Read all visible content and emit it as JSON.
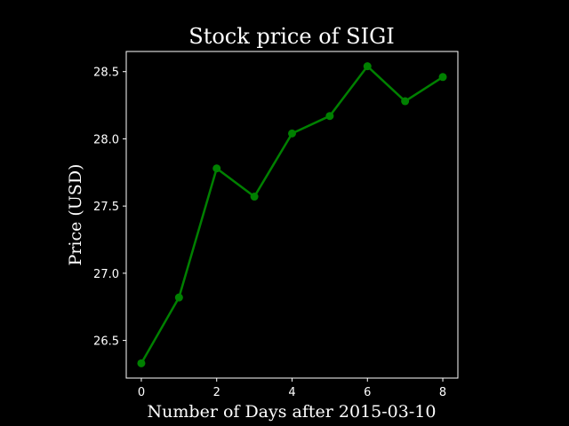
{
  "chart_data": {
    "type": "line",
    "title": "Stock price of SIGI",
    "xlabel": "Number of Days after 2015-03-10",
    "ylabel": "Price (USD)",
    "x": [
      0,
      1,
      2,
      3,
      4,
      5,
      6,
      7,
      8
    ],
    "series": [
      {
        "values": [
          26.33,
          26.82,
          27.78,
          27.57,
          28.04,
          28.17,
          28.54,
          28.28,
          28.46
        ],
        "color": "#008000"
      }
    ],
    "xlim": [
      -0.4,
      8.4
    ],
    "ylim": [
      26.22,
      28.65
    ],
    "xticks": [
      0,
      2,
      4,
      6,
      8
    ],
    "yticks": [
      26.5,
      27.0,
      27.5,
      28.0,
      28.5
    ],
    "ytick_labels": [
      "26.5",
      "27.0",
      "27.5",
      "28.0",
      "28.5"
    ],
    "grid": false,
    "background": "#000000",
    "foreground": "#ffffff"
  }
}
